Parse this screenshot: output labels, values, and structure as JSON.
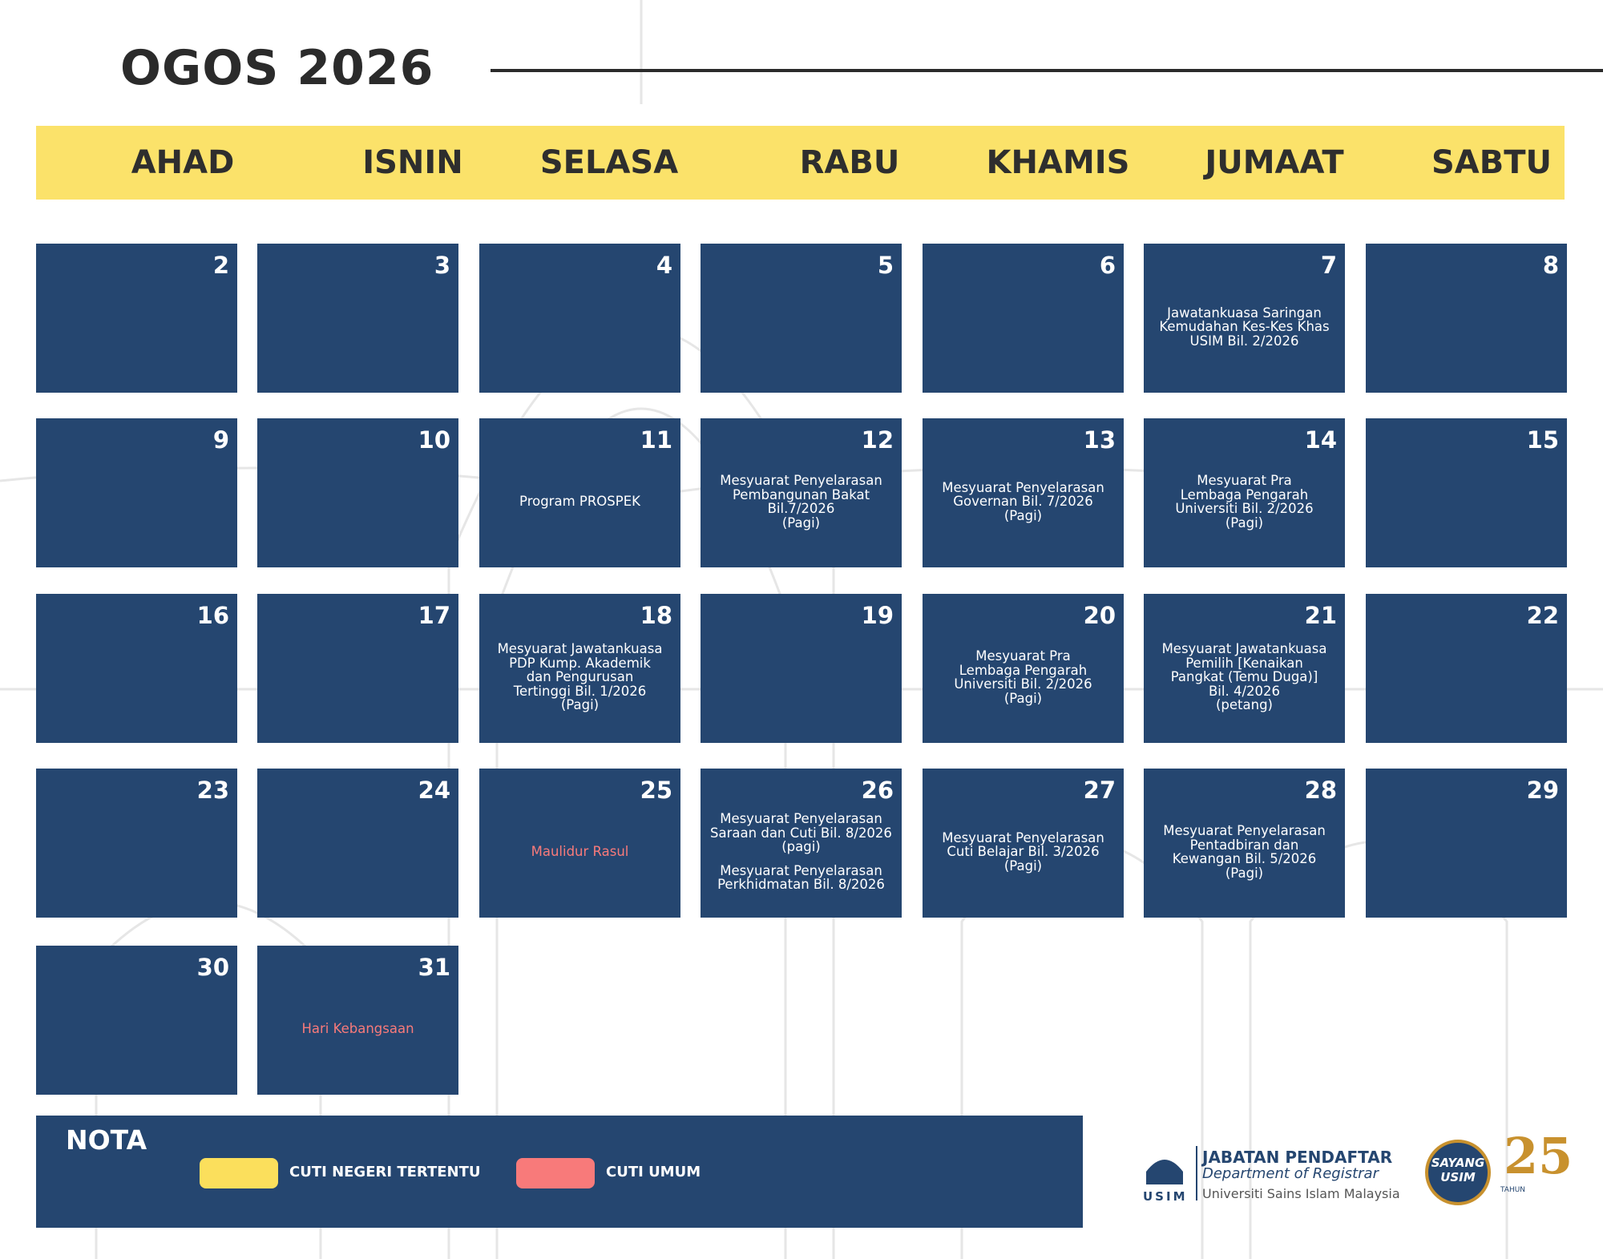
{
  "header": {
    "title": "OGOS 2026"
  },
  "weekdays": [
    "AHAD",
    "ISNIN",
    "SELASA",
    "RABU",
    "KHAMIS",
    "JUMAAT",
    "SABTU"
  ],
  "weeks": [
    [
      {
        "day": 2
      },
      {
        "day": 3
      },
      {
        "day": 4
      },
      {
        "day": 5
      },
      {
        "day": 6
      },
      {
        "day": 7,
        "events": [
          [
            "Jawatankuasa Saringan",
            "Kemudahan Kes-Kes Khas",
            "USIM Bil. 2/2026"
          ]
        ]
      },
      {
        "day": 8
      }
    ],
    [
      {
        "day": 9
      },
      {
        "day": 10
      },
      {
        "day": 11,
        "events": [
          [
            "Program PROSPEK"
          ]
        ]
      },
      {
        "day": 12,
        "events": [
          [
            "Mesyuarat Penyelarasan",
            "Pembangunan Bakat",
            "Bil.7/2026",
            "(Pagi)"
          ]
        ]
      },
      {
        "day": 13,
        "events": [
          [
            "Mesyuarat Penyelarasan",
            "Governan Bil. 7/2026",
            "(Pagi)"
          ]
        ]
      },
      {
        "day": 14,
        "events": [
          [
            "Mesyuarat Pra",
            "Lembaga Pengarah",
            "Universiti Bil. 2/2026",
            "(Pagi)"
          ]
        ]
      },
      {
        "day": 15
      }
    ],
    [
      {
        "day": 16
      },
      {
        "day": 17
      },
      {
        "day": 18,
        "events": [
          [
            "Mesyuarat Jawatankuasa",
            "PDP Kump. Akademik",
            "dan Pengurusan",
            "Tertinggi Bil. 1/2026",
            "(Pagi)"
          ]
        ]
      },
      {
        "day": 19
      },
      {
        "day": 20,
        "events": [
          [
            "Mesyuarat Pra",
            "Lembaga Pengarah",
            "Universiti Bil. 2/2026",
            "(Pagi)"
          ]
        ]
      },
      {
        "day": 21,
        "events": [
          [
            "Mesyuarat Jawatankuasa",
            "Pemilih [Kenaikan",
            "Pangkat (Temu Duga)]",
            "Bil. 4/2026",
            "(petang)"
          ]
        ]
      },
      {
        "day": 22
      }
    ],
    [
      {
        "day": 23
      },
      {
        "day": 24
      },
      {
        "day": 25,
        "holiday": [
          [
            "Maulidur Rasul"
          ]
        ]
      },
      {
        "day": 26,
        "events": [
          [
            "Mesyuarat Penyelarasan",
            "Saraan dan Cuti Bil. 8/2026",
            "(pagi)"
          ],
          [
            "Mesyuarat Penyelarasan",
            "Perkhidmatan Bil. 8/2026"
          ]
        ]
      },
      {
        "day": 27,
        "events": [
          [
            "Mesyuarat Penyelarasan",
            "Cuti Belajar Bil. 3/2026",
            "(Pagi)"
          ]
        ]
      },
      {
        "day": 28,
        "events": [
          [
            "Mesyuarat Penyelarasan",
            "Pentadbiran dan",
            "Kewangan Bil. 5/2026",
            "(Pagi)"
          ]
        ]
      },
      {
        "day": 29
      }
    ],
    [
      {
        "day": 30
      },
      {
        "day": 31,
        "holiday": [
          [
            "Hari Kebangsaan"
          ]
        ]
      }
    ]
  ],
  "legend": {
    "title": "NOTA",
    "items": [
      {
        "label": "CUTI NEGERI TERTENTU",
        "color": "#fbdf5c"
      },
      {
        "label": "CUTI UMUM",
        "color": "#f87a7a"
      }
    ]
  },
  "holiday_color": "#f87a7a",
  "logo": {
    "short": "USIM",
    "name": "JABATAN PENDAFTAR",
    "english": "Department of Registrar",
    "university": "Universiti Sains Islam Malaysia",
    "badge": "SAYANG",
    "badge_sub": "USIM",
    "years": "25",
    "years_label": "TAHUN"
  }
}
